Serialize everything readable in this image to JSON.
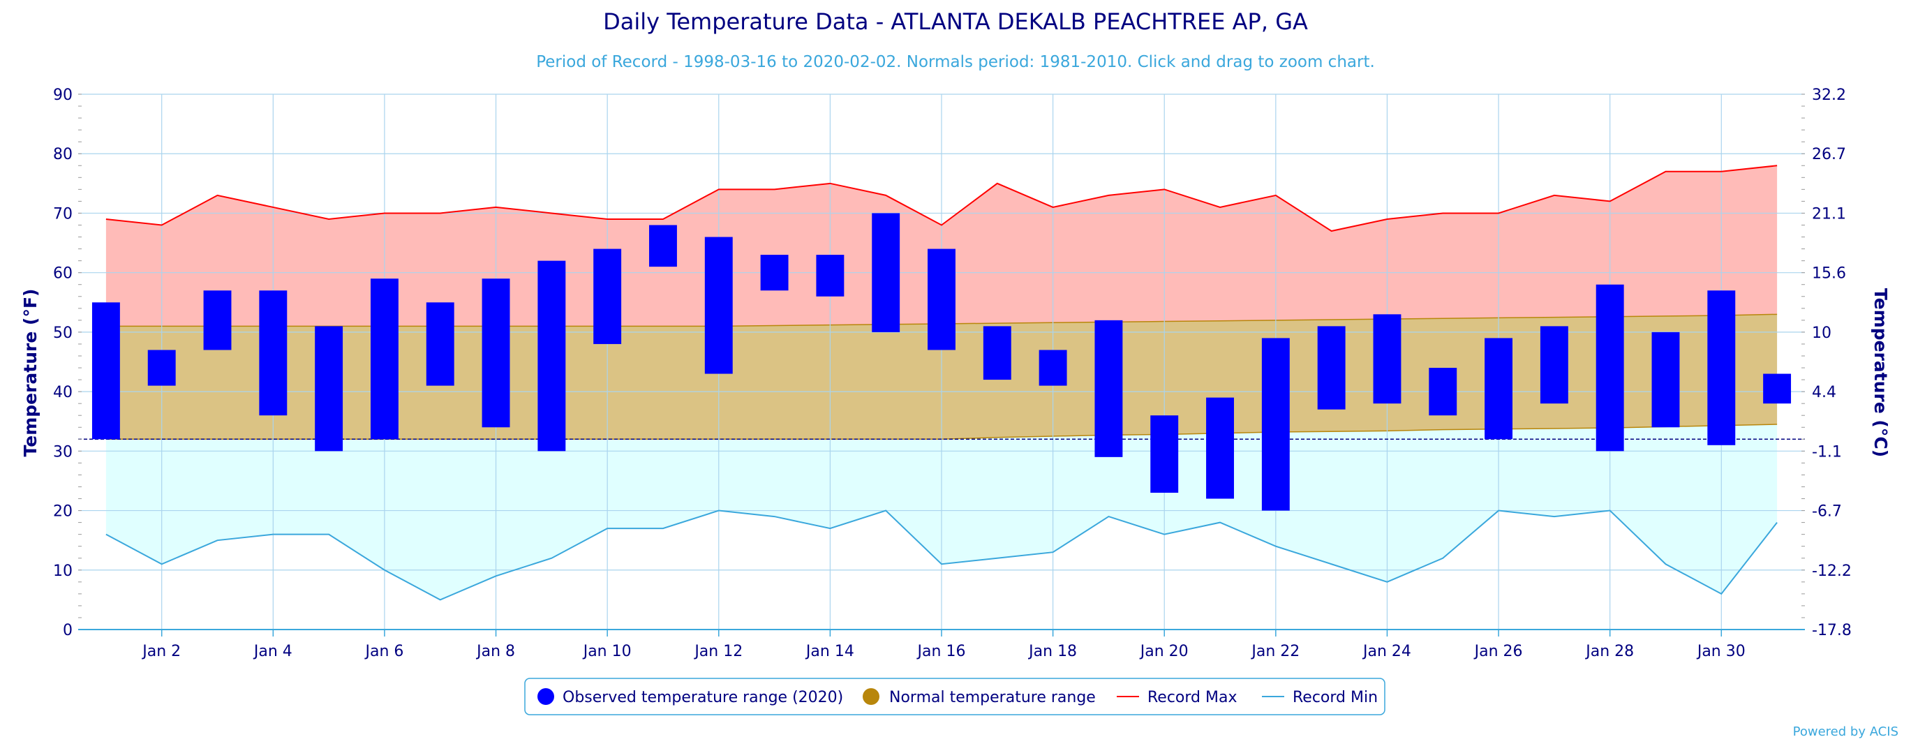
{
  "chart_data": {
    "type": "bar",
    "title": "Daily Temperature Data - ATLANTA DEKALB PEACHTREE AP, GA",
    "subtitle": "Period of Record - 1998-03-16 to 2020-02-02. Normals period: 1981-2010. Click and drag to zoom chart.",
    "ylabel": "Temperature (°F)",
    "ylabel_right": "Temperature (°C)",
    "ylim": [
      0,
      90
    ],
    "xlim": [
      0.5,
      31.5
    ],
    "y_ticks": [
      "0",
      "10",
      "20",
      "30",
      "40",
      "50",
      "60",
      "70",
      "80",
      "90"
    ],
    "y_ticks_right": [
      "-17.8",
      "-12.2",
      "-6.7",
      "-1.1",
      "4.4",
      "10",
      "15.6",
      "21.1",
      "26.7",
      "32.2"
    ],
    "x_ticks": [
      {
        "day": 2,
        "label": "Jan 2"
      },
      {
        "day": 4,
        "label": "Jan 4"
      },
      {
        "day": 6,
        "label": "Jan 6"
      },
      {
        "day": 8,
        "label": "Jan 8"
      },
      {
        "day": 10,
        "label": "Jan 10"
      },
      {
        "day": 12,
        "label": "Jan 12"
      },
      {
        "day": 14,
        "label": "Jan 14"
      },
      {
        "day": 16,
        "label": "Jan 16"
      },
      {
        "day": 18,
        "label": "Jan 18"
      },
      {
        "day": 20,
        "label": "Jan 20"
      },
      {
        "day": 22,
        "label": "Jan 22"
      },
      {
        "day": 24,
        "label": "Jan 24"
      },
      {
        "day": 26,
        "label": "Jan 26"
      },
      {
        "day": 28,
        "label": "Jan 28"
      },
      {
        "day": 30,
        "label": "Jan 30"
      }
    ],
    "freezing_line": 32,
    "grid": true,
    "legend_position": "bottom-center",
    "days": [
      1,
      2,
      3,
      4,
      5,
      6,
      7,
      8,
      9,
      10,
      11,
      12,
      13,
      14,
      15,
      16,
      17,
      18,
      19,
      20,
      21,
      22,
      23,
      24,
      25,
      26,
      27,
      28,
      29,
      30,
      31
    ],
    "series": [
      {
        "name": "Observed temperature range (2020)",
        "color": "#0000ff",
        "low": [
          32,
          41,
          47,
          36,
          30,
          32,
          41,
          34,
          30,
          48,
          61,
          43,
          57,
          56,
          50,
          47,
          42,
          41,
          29,
          23,
          22,
          20,
          37,
          38,
          36,
          32,
          38,
          30,
          34,
          31,
          38
        ],
        "high": [
          55,
          47,
          57,
          57,
          51,
          59,
          55,
          59,
          62,
          64,
          68,
          66,
          63,
          63,
          70,
          64,
          51,
          47,
          52,
          36,
          39,
          49,
          51,
          53,
          44,
          49,
          51,
          58,
          50,
          57,
          43
        ]
      },
      {
        "name": "Normal temperature range",
        "color": "#b8860b",
        "low": [
          32,
          32,
          32,
          32,
          32,
          32,
          32,
          32,
          32,
          32,
          32,
          32,
          32,
          32,
          32,
          32,
          32.3,
          32.5,
          32.7,
          32.8,
          33,
          33.2,
          33.3,
          33.4,
          33.6,
          33.7,
          33.8,
          33.9,
          34.1,
          34.3,
          34.5
        ],
        "high": [
          51,
          51,
          51,
          51,
          51,
          51,
          51,
          51,
          51,
          51,
          51,
          51,
          51.1,
          51.2,
          51.3,
          51.4,
          51.5,
          51.6,
          51.7,
          51.8,
          51.9,
          52,
          52.1,
          52.2,
          52.3,
          52.4,
          52.5,
          52.6,
          52.7,
          52.8,
          53
        ]
      },
      {
        "name": "Record Max",
        "color": "#ff0000",
        "values": [
          69,
          68,
          73,
          71,
          69,
          70,
          70,
          71,
          70,
          69,
          69,
          74,
          74,
          75,
          73,
          68,
          75,
          71,
          73,
          74,
          71,
          73,
          67,
          69,
          70,
          70,
          73,
          72,
          77,
          77,
          78
        ]
      },
      {
        "name": "Record Min",
        "color": "#3aa7dc",
        "values": [
          16,
          11,
          15,
          16,
          16,
          10,
          5,
          9,
          12,
          17,
          17,
          20,
          19,
          17,
          20,
          11,
          12,
          13,
          19,
          16,
          18,
          14,
          11,
          8,
          12,
          20,
          19,
          20,
          11,
          6,
          18
        ]
      }
    ]
  },
  "colors": {
    "title": "#000080",
    "subtitle": "#3aa7dc",
    "record_max_fill": "#ffbbb8",
    "normal_fill": "#dbc384",
    "record_min_fill": "#e0ffff",
    "grid": "#aad4ee"
  },
  "credit": "Powered by ACIS"
}
